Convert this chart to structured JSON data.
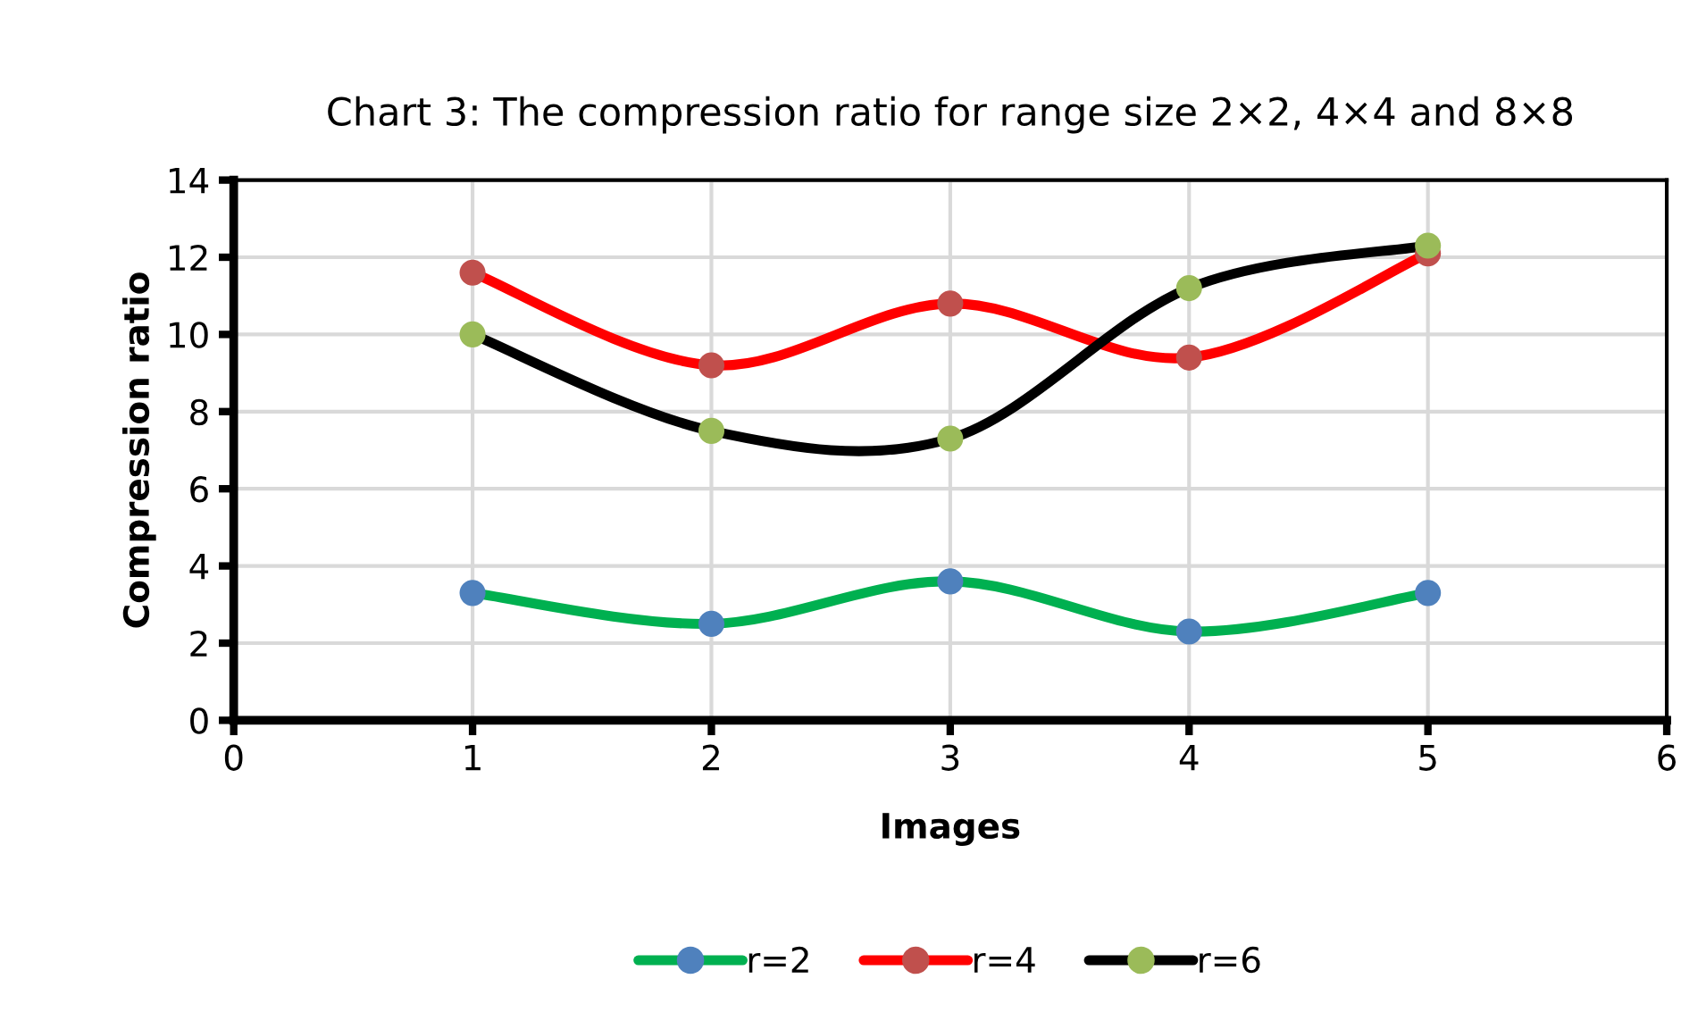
{
  "chart_data": {
    "type": "line",
    "title": "Chart 3: The compression ratio for range size 2×2, 4×4 and 8×8",
    "xlabel": "Images",
    "ylabel": "Compression ratio",
    "x": [
      1,
      2,
      3,
      4,
      5
    ],
    "series": [
      {
        "name": "r=2",
        "color": "#00b050",
        "colors": [
          "#4f81bd",
          "#4f81bd",
          "#4f81bd",
          "#4f81bd",
          "#4f81bd"
        ],
        "values": [
          3.3,
          2.5,
          3.6,
          2.3,
          3.3
        ]
      },
      {
        "name": "r=4",
        "color": "#ff0000",
        "colors": [
          "#c0504d",
          "#c0504d",
          "#c0504d",
          "#c0504d",
          "#c0504d"
        ],
        "values": [
          11.6,
          9.2,
          10.8,
          9.4,
          12.1
        ]
      },
      {
        "name": "r=6",
        "color": "#000000",
        "colors": [
          "#9bbb59",
          "#9bbb59",
          "#9bbb59",
          "#9bbb59",
          "#9bbb59"
        ],
        "values": [
          10.0,
          7.5,
          7.3,
          11.2,
          12.3
        ]
      }
    ],
    "xlim": [
      0,
      6
    ],
    "xticks": [
      0,
      1,
      2,
      3,
      4,
      5,
      6
    ],
    "ylim": [
      0,
      14
    ],
    "yticks": [
      0,
      2,
      4,
      6,
      8,
      10,
      12,
      14
    ],
    "grid": true,
    "legend": "bottom",
    "marker": "circle",
    "line_style": "solid"
  }
}
